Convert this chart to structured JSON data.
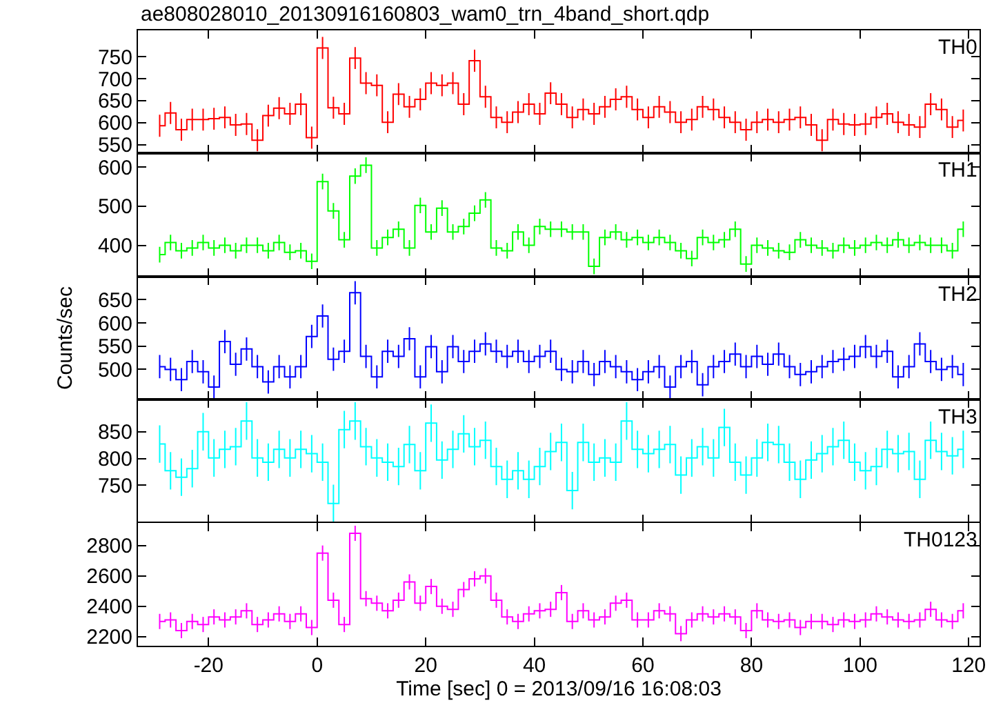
{
  "chart_data": [
    {
      "type": "step",
      "title": "ae808028010_20130916160803_wam0_trn_4band_short.qdp",
      "annotations": [
        "TH0"
      ],
      "tick_labels": "y",
      "xlim": [
        -33,
        122
      ],
      "xticks": [
        -20,
        0,
        20,
        40,
        60,
        80,
        100,
        120
      ],
      "ylim": [
        530,
        810
      ],
      "yticks": [
        550,
        600,
        650,
        700,
        750
      ],
      "x": [
        -29,
        -27,
        -25,
        -23,
        -21,
        -19,
        -17,
        -15,
        -13,
        -11,
        -9,
        -7,
        -5,
        -3,
        -1,
        1,
        3,
        5,
        7,
        9,
        11,
        13,
        15,
        17,
        19,
        21,
        23,
        25,
        27,
        29,
        31,
        33,
        35,
        37,
        39,
        41,
        43,
        45,
        47,
        49,
        51,
        53,
        55,
        57,
        59,
        61,
        63,
        65,
        67,
        69,
        71,
        73,
        75,
        77,
        79,
        81,
        83,
        85,
        87,
        89,
        91,
        93,
        95,
        97,
        99,
        101,
        103,
        105,
        107,
        109,
        111,
        113,
        115,
        117,
        119
      ],
      "series": [
        {
          "color": "#ff0000",
          "values": [
            593,
            622,
            584,
            607,
            607,
            609,
            612,
            595,
            597,
            560,
            616,
            633,
            620,
            642,
            566,
            770,
            634,
            620,
            747,
            690,
            685,
            601,
            665,
            636,
            653,
            690,
            685,
            690,
            642,
            741,
            659,
            612,
            601,
            624,
            642,
            620,
            667,
            642,
            612,
            630,
            620,
            636,
            653,
            659,
            630,
            612,
            636,
            624,
            601,
            607,
            636,
            630,
            612,
            601,
            584,
            601,
            607,
            601,
            607,
            612,
            595,
            560,
            607,
            597,
            595,
            597,
            612,
            620,
            601,
            595,
            590,
            642,
            630,
            590,
            605
          ],
          "errors": [
            25,
            25,
            25,
            25,
            25,
            25,
            25,
            25,
            25,
            25,
            25,
            25,
            25,
            25,
            25,
            25,
            25,
            25,
            25,
            25,
            25,
            25,
            25,
            25,
            25,
            25,
            25,
            25,
            25,
            25,
            25,
            25,
            25,
            25,
            25,
            25,
            25,
            25,
            25,
            25,
            25,
            25,
            25,
            25,
            25,
            25,
            25,
            25,
            25,
            25,
            25,
            25,
            25,
            25,
            25,
            25,
            25,
            25,
            25,
            25,
            25,
            25,
            25,
            25,
            25,
            25,
            25,
            25,
            25,
            25,
            25,
            25,
            25,
            25,
            25
          ]
        }
      ]
    },
    {
      "type": "step",
      "annotations": [
        "TH1"
      ],
      "tick_labels": "y",
      "xlim": [
        -33,
        122
      ],
      "xticks": [
        -20,
        0,
        20,
        40,
        60,
        80,
        100,
        120
      ],
      "ylim": [
        320,
        635
      ],
      "yticks": [
        400,
        500,
        600
      ],
      "x": [
        -29,
        -27,
        -25,
        -23,
        -21,
        -19,
        -17,
        -15,
        -13,
        -11,
        -9,
        -7,
        -5,
        -3,
        -1,
        1,
        3,
        5,
        7,
        9,
        11,
        13,
        15,
        17,
        19,
        21,
        23,
        25,
        27,
        29,
        31,
        33,
        35,
        37,
        39,
        41,
        43,
        45,
        47,
        49,
        51,
        53,
        55,
        57,
        59,
        61,
        63,
        65,
        67,
        69,
        71,
        73,
        75,
        77,
        79,
        81,
        83,
        85,
        87,
        89,
        91,
        93,
        95,
        97,
        99,
        101,
        103,
        105,
        107,
        109,
        111,
        113,
        115,
        117,
        119
      ],
      "series": [
        {
          "color": "#00ff00",
          "values": [
            376,
            407,
            386,
            393,
            407,
            393,
            400,
            386,
            400,
            400,
            386,
            407,
            382,
            386,
            359,
            563,
            488,
            414,
            577,
            605,
            393,
            420,
            441,
            393,
            502,
            434,
            495,
            434,
            448,
            482,
            516,
            393,
            386,
            434,
            400,
            448,
            441,
            441,
            434,
            434,
            346,
            420,
            434,
            414,
            420,
            407,
            420,
            407,
            386,
            366,
            420,
            407,
            414,
            441,
            352,
            400,
            393,
            386,
            382,
            414,
            400,
            393,
            386,
            400,
            393,
            400,
            407,
            400,
            414,
            400,
            407,
            400,
            400,
            386,
            441
          ],
          "errors": [
            20,
            20,
            20,
            20,
            20,
            20,
            20,
            20,
            20,
            20,
            20,
            20,
            20,
            20,
            20,
            20,
            20,
            20,
            20,
            20,
            20,
            20,
            20,
            20,
            20,
            20,
            20,
            20,
            20,
            20,
            20,
            20,
            20,
            20,
            20,
            20,
            20,
            20,
            20,
            20,
            20,
            20,
            20,
            20,
            20,
            20,
            20,
            20,
            20,
            20,
            20,
            20,
            20,
            20,
            20,
            20,
            20,
            20,
            20,
            20,
            20,
            20,
            20,
            20,
            20,
            20,
            20,
            20,
            20,
            20,
            20,
            20,
            20,
            20,
            20
          ]
        }
      ]
    },
    {
      "type": "step",
      "annotations": [
        "TH2"
      ],
      "ylabel": "Counts/sec",
      "tick_labels": "y",
      "xlim": [
        -33,
        122
      ],
      "xticks": [
        -20,
        0,
        20,
        40,
        60,
        80,
        100,
        120
      ],
      "ylim": [
        435,
        700
      ],
      "yticks": [
        500,
        550,
        600,
        650
      ],
      "x": [
        -29,
        -27,
        -25,
        -23,
        -21,
        -19,
        -17,
        -15,
        -13,
        -11,
        -9,
        -7,
        -5,
        -3,
        -1,
        1,
        3,
        5,
        7,
        9,
        11,
        13,
        15,
        17,
        19,
        21,
        23,
        25,
        27,
        29,
        31,
        33,
        35,
        37,
        39,
        41,
        43,
        45,
        47,
        49,
        51,
        53,
        55,
        57,
        59,
        61,
        63,
        65,
        67,
        69,
        71,
        73,
        75,
        77,
        79,
        81,
        83,
        85,
        87,
        89,
        91,
        93,
        95,
        97,
        99,
        101,
        103,
        105,
        107,
        109,
        111,
        113,
        115,
        117,
        119
      ],
      "series": [
        {
          "color": "#0000ff",
          "values": [
            506,
            500,
            478,
            517,
            495,
            462,
            560,
            511,
            544,
            506,
            473,
            506,
            484,
            506,
            571,
            615,
            522,
            539,
            665,
            528,
            484,
            539,
            528,
            566,
            484,
            549,
            495,
            549,
            517,
            539,
            555,
            539,
            528,
            539,
            517,
            528,
            539,
            500,
            495,
            517,
            489,
            517,
            506,
            495,
            478,
            495,
            506,
            462,
            506,
            517,
            467,
            506,
            517,
            533,
            506,
            528,
            511,
            533,
            506,
            489,
            495,
            506,
            517,
            522,
            528,
            549,
            528,
            539,
            484,
            506,
            555,
            517,
            500,
            506,
            489
          ],
          "errors": [
            25,
            25,
            25,
            25,
            25,
            25,
            25,
            25,
            25,
            25,
            25,
            25,
            25,
            25,
            25,
            25,
            25,
            25,
            25,
            25,
            25,
            25,
            25,
            25,
            25,
            25,
            25,
            25,
            25,
            25,
            25,
            25,
            25,
            25,
            25,
            25,
            25,
            25,
            25,
            25,
            25,
            25,
            25,
            25,
            25,
            25,
            25,
            25,
            25,
            25,
            25,
            25,
            25,
            25,
            25,
            25,
            25,
            25,
            25,
            25,
            25,
            25,
            25,
            25,
            25,
            25,
            25,
            25,
            25,
            25,
            25,
            25,
            25,
            25,
            25
          ]
        }
      ]
    },
    {
      "type": "step",
      "annotations": [
        "TH3"
      ],
      "tick_labels": "y",
      "xlim": [
        -33,
        122
      ],
      "xticks": [
        -20,
        0,
        20,
        40,
        60,
        80,
        100,
        120
      ],
      "ylim": [
        680,
        910
      ],
      "yticks": [
        750,
        800,
        850
      ],
      "x": [
        -29,
        -27,
        -25,
        -23,
        -21,
        -19,
        -17,
        -15,
        -13,
        -11,
        -9,
        -7,
        -5,
        -3,
        -1,
        1,
        3,
        5,
        7,
        9,
        11,
        13,
        15,
        17,
        19,
        21,
        23,
        25,
        27,
        29,
        31,
        33,
        35,
        37,
        39,
        41,
        43,
        45,
        47,
        49,
        51,
        53,
        55,
        57,
        59,
        61,
        63,
        65,
        67,
        69,
        71,
        73,
        75,
        77,
        79,
        81,
        83,
        85,
        87,
        89,
        91,
        93,
        95,
        97,
        99,
        101,
        103,
        105,
        107,
        109,
        111,
        113,
        115,
        117,
        119
      ],
      "series": [
        {
          "color": "#00ffff",
          "values": [
            827,
            777,
            765,
            781,
            850,
            801,
            817,
            822,
            870,
            801,
            793,
            817,
            801,
            817,
            809,
            793,
            716,
            854,
            870,
            822,
            801,
            793,
            785,
            826,
            777,
            866,
            797,
            817,
            846,
            822,
            834,
            785,
            761,
            777,
            761,
            785,
            813,
            830,
            740,
            830,
            793,
            801,
            793,
            870,
            817,
            809,
            817,
            826,
            769,
            801,
            822,
            801,
            858,
            793,
            769,
            801,
            830,
            826,
            793,
            761,
            797,
            809,
            822,
            834,
            793,
            777,
            785,
            817,
            809,
            813,
            761,
            834,
            813,
            805,
            817
          ],
          "errors": [
            35,
            35,
            35,
            35,
            35,
            35,
            35,
            35,
            35,
            35,
            35,
            35,
            35,
            35,
            35,
            35,
            35,
            35,
            35,
            35,
            35,
            35,
            35,
            35,
            35,
            35,
            35,
            35,
            35,
            35,
            35,
            35,
            35,
            35,
            35,
            35,
            35,
            35,
            35,
            35,
            35,
            35,
            35,
            35,
            35,
            35,
            35,
            35,
            35,
            35,
            35,
            35,
            35,
            35,
            35,
            35,
            35,
            35,
            35,
            35,
            35,
            35,
            35,
            35,
            35,
            35,
            35,
            35,
            35,
            35,
            35,
            35,
            35,
            35,
            35
          ]
        }
      ]
    },
    {
      "type": "step",
      "annotations": [
        "TH0123"
      ],
      "xlabel": "Time [sec] 0 = 2013/09/16 16:08:03",
      "xlim": [
        -33,
        122
      ],
      "xticks": [
        -20,
        0,
        20,
        40,
        60,
        80,
        100,
        120
      ],
      "ylim": [
        2140,
        2950
      ],
      "yticks": [
        2200,
        2400,
        2600,
        2800
      ],
      "x": [
        -29,
        -27,
        -25,
        -23,
        -21,
        -19,
        -17,
        -15,
        -13,
        -11,
        -9,
        -7,
        -5,
        -3,
        -1,
        1,
        3,
        5,
        7,
        9,
        11,
        13,
        15,
        17,
        19,
        21,
        23,
        25,
        27,
        29,
        31,
        33,
        35,
        37,
        39,
        41,
        43,
        45,
        47,
        49,
        51,
        53,
        55,
        57,
        59,
        61,
        63,
        65,
        67,
        69,
        71,
        73,
        75,
        77,
        79,
        81,
        83,
        85,
        87,
        89,
        91,
        93,
        95,
        97,
        99,
        101,
        103,
        105,
        107,
        109,
        111,
        113,
        115,
        117,
        119
      ],
      "series": [
        {
          "color": "#ff00ff",
          "values": [
            2300,
            2310,
            2240,
            2300,
            2280,
            2330,
            2310,
            2330,
            2370,
            2280,
            2310,
            2350,
            2300,
            2350,
            2260,
            2750,
            2440,
            2280,
            2880,
            2450,
            2420,
            2370,
            2440,
            2560,
            2420,
            2530,
            2400,
            2380,
            2510,
            2580,
            2600,
            2440,
            2330,
            2300,
            2350,
            2370,
            2380,
            2490,
            2300,
            2370,
            2310,
            2330,
            2420,
            2440,
            2310,
            2310,
            2370,
            2350,
            2220,
            2310,
            2350,
            2330,
            2350,
            2330,
            2240,
            2370,
            2310,
            2300,
            2310,
            2260,
            2300,
            2300,
            2280,
            2310,
            2300,
            2310,
            2350,
            2330,
            2310,
            2300,
            2310,
            2380,
            2310,
            2300,
            2370
          ],
          "errors": [
            50,
            50,
            50,
            50,
            50,
            50,
            50,
            50,
            50,
            50,
            50,
            50,
            50,
            50,
            50,
            50,
            50,
            50,
            50,
            50,
            50,
            50,
            50,
            50,
            50,
            50,
            50,
            50,
            50,
            50,
            50,
            50,
            50,
            50,
            50,
            50,
            50,
            50,
            50,
            50,
            50,
            50,
            50,
            50,
            50,
            50,
            50,
            50,
            50,
            50,
            50,
            50,
            50,
            50,
            50,
            50,
            50,
            50,
            50,
            50,
            50,
            50,
            50,
            50,
            50,
            50,
            50,
            50,
            50,
            50,
            50,
            50,
            50,
            50,
            50
          ]
        }
      ]
    }
  ]
}
